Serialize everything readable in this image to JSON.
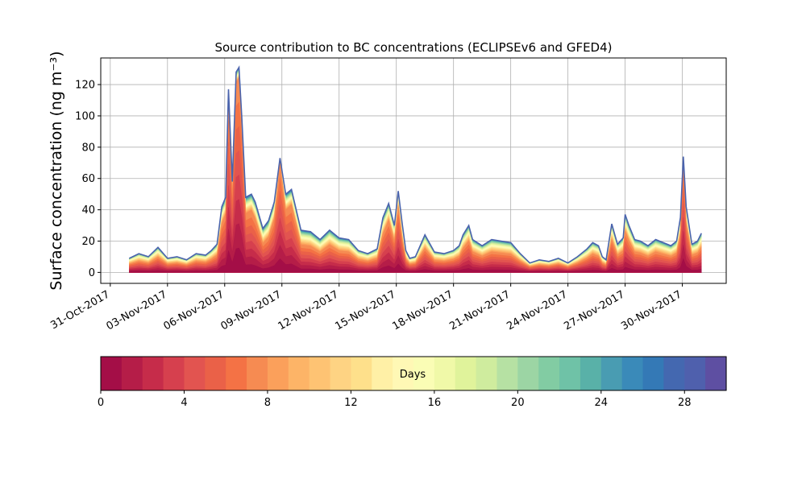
{
  "chart_data": {
    "type": "area",
    "title": "Source contribution to BC concentrations (ECLIPSEv6 and GFED4)",
    "ylabel": "Surface concentration (ng m⁻³)",
    "xlabel": "",
    "ylim": [
      -7,
      137
    ],
    "yticks": [
      0,
      20,
      40,
      60,
      80,
      100,
      120
    ],
    "xticks": [
      "31-Oct-2017",
      "03-Nov-2017",
      "06-Nov-2017",
      "09-Nov-2017",
      "12-Nov-2017",
      "15-Nov-2017",
      "18-Nov-2017",
      "21-Nov-2017",
      "24-Nov-2017",
      "27-Nov-2017",
      "30-Nov-2017"
    ],
    "xlim_days_from_31oct": [
      -0.5,
      32.3
    ],
    "grid": true,
    "series_note": "cumulative contribution by emission age (0-30 days); total shown",
    "x_days_from_31oct": [
      1.0,
      1.5,
      2.0,
      2.5,
      3.0,
      3.5,
      4.0,
      4.5,
      5.0,
      5.3,
      5.6,
      5.85,
      6.05,
      6.2,
      6.4,
      6.6,
      6.75,
      6.9,
      7.1,
      7.4,
      7.6,
      8.0,
      8.3,
      8.6,
      8.9,
      9.2,
      9.5,
      10.0,
      10.5,
      11.0,
      11.5,
      12.0,
      12.5,
      13.0,
      13.5,
      14.0,
      14.3,
      14.6,
      14.9,
      15.1,
      15.3,
      15.5,
      15.7,
      16.0,
      16.5,
      17.0,
      17.5,
      18.0,
      18.3,
      18.5,
      18.8,
      19.0,
      19.5,
      20.0,
      20.5,
      21.0,
      21.5,
      22.0,
      22.5,
      23.0,
      23.5,
      24.0,
      24.5,
      25.0,
      25.3,
      25.6,
      25.8,
      26.0,
      26.3,
      26.6,
      26.9,
      27.0,
      27.2,
      27.5,
      27.8,
      28.2,
      28.6,
      29.0,
      29.4,
      29.7,
      29.9,
      30.05,
      30.2,
      30.5,
      30.8,
      31.0
    ],
    "total": [
      9,
      12,
      10,
      16,
      9,
      10,
      8,
      12,
      11,
      14,
      18,
      42,
      48,
      117,
      58,
      128,
      131,
      98,
      48,
      50,
      45,
      28,
      33,
      45,
      73,
      50,
      53,
      27,
      26,
      21,
      27,
      22,
      21,
      14,
      12,
      15,
      35,
      44,
      30,
      52,
      32,
      14,
      9,
      10,
      24,
      13,
      12,
      14,
      17,
      24,
      30,
      21,
      17,
      21,
      20,
      19,
      12,
      6,
      8,
      7,
      9,
      6,
      10,
      15,
      19,
      17,
      10,
      8,
      31,
      18,
      22,
      37,
      30,
      21,
      20,
      17,
      21,
      19,
      17,
      20,
      35,
      74,
      42,
      18,
      20,
      25
    ],
    "colorbar": {
      "label": "Days",
      "range": [
        0,
        30
      ],
      "ticks": [
        0,
        4,
        8,
        12,
        16,
        20,
        24,
        28
      ],
      "levels": 30,
      "colormap": "Spectral",
      "colors": [
        "#a40e47",
        "#b51d48",
        "#c62c4a",
        "#d6404e",
        "#e25450",
        "#ea6148",
        "#f47245",
        "#f68b52",
        "#fba05b",
        "#fdb467",
        "#fec373",
        "#fed383",
        "#fee08b",
        "#fff0a6",
        "#fff8b5",
        "#fafdb5",
        "#f0f9a8",
        "#e0f39b",
        "#cfec9e",
        "#b6e1a3",
        "#9cd5a4",
        "#82cca3",
        "#6fc2a7",
        "#59b1a8",
        "#499cb2",
        "#3a8ab9",
        "#3479b6",
        "#4468b0",
        "#4f60ad",
        "#5e4fa2"
      ]
    }
  }
}
